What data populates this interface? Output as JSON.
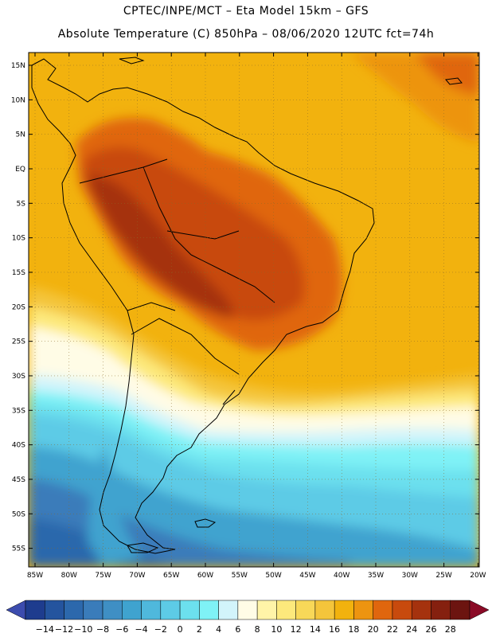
{
  "header": {
    "line1": "CPTEC/INPE/MCT –  Eta Model 15km – GFS",
    "line2": "Absolute Temperature (C) 850hPa – 08/06/2020 12UTC fct=74h"
  },
  "map": {
    "lat_labels": [
      "15N",
      "10N",
      "5N",
      "EQ",
      "5S",
      "10S",
      "15S",
      "20S",
      "25S",
      "30S",
      "35S",
      "40S",
      "45S",
      "50S",
      "55S"
    ],
    "lon_labels": [
      "85W",
      "80W",
      "75W",
      "70W",
      "65W",
      "60W",
      "55W",
      "50W",
      "45W",
      "40W",
      "35W",
      "30W",
      "25W",
      "20W"
    ],
    "background_color": "#f2b20e"
  },
  "colorbar": {
    "labels": [
      "-14",
      "-12",
      "-10",
      "-8",
      "-6",
      "-4",
      "-2",
      "0",
      "2",
      "4",
      "6",
      "8",
      "10",
      "12",
      "14",
      "16",
      "18",
      "20",
      "22",
      "24",
      "26",
      "28"
    ],
    "low_arrow_color": "#3c4cae",
    "high_arrow_color": "#8a0a26",
    "colors": [
      "#1e3c8e",
      "#24549e",
      "#2c68ac",
      "#3a7cba",
      "#3f8fc4",
      "#3fa3cf",
      "#4fb8dc",
      "#5dcbe6",
      "#6ce0ee",
      "#7ff2f6",
      "#d2f4fb",
      "#fffce6",
      "#fff4a8",
      "#fde97c",
      "#f8d858",
      "#f4c53b",
      "#f2b20e",
      "#ed9410",
      "#e0660e",
      "#c84a0d",
      "#a5320e",
      "#85200f",
      "#6c1410"
    ]
  }
}
